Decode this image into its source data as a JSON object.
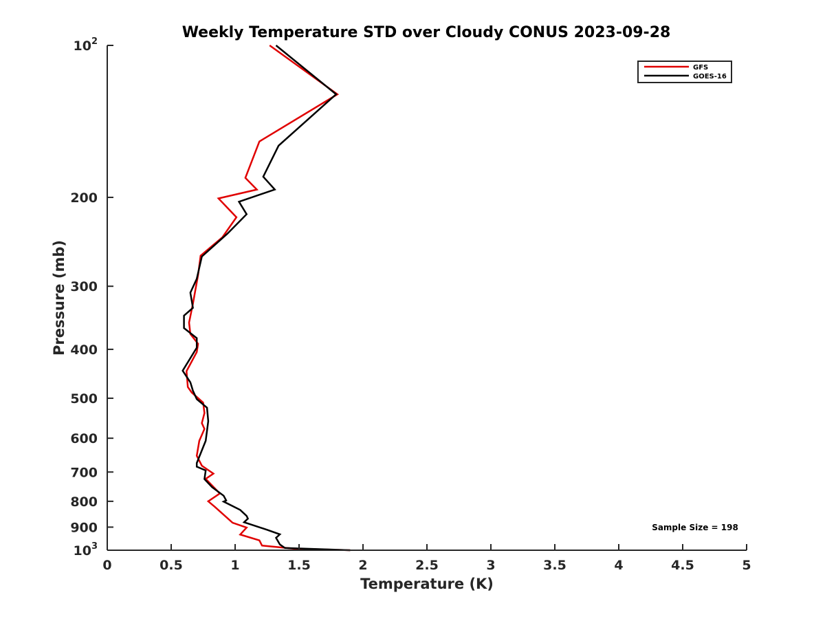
{
  "chart_data": {
    "type": "line",
    "title": "Weekly Temperature STD over Cloudy CONUS 2023-09-28",
    "xlabel": "Temperature (K)",
    "ylabel": "Pressure (mb)",
    "xlim": [
      0,
      5
    ],
    "ylim": [
      100,
      1000
    ],
    "yscale": "log",
    "yreversed": true,
    "grid": false,
    "legend_position": "top-right",
    "xticks": [
      0,
      0.5,
      1,
      1.5,
      2,
      2.5,
      3,
      3.5,
      4,
      4.5,
      5
    ],
    "xtick_labels": [
      "0",
      "0.5",
      "1",
      "1.5",
      "2",
      "2.5",
      "3",
      "3.5",
      "4",
      "4.5",
      "5"
    ],
    "yticks": [
      100,
      200,
      300,
      400,
      500,
      600,
      700,
      800,
      900,
      1000
    ],
    "ytick_labels": [
      {
        "base": "10",
        "exp": "2"
      },
      {
        "base": "200",
        "exp": ""
      },
      {
        "base": "300",
        "exp": ""
      },
      {
        "base": "400",
        "exp": ""
      },
      {
        "base": "500",
        "exp": ""
      },
      {
        "base": "600",
        "exp": ""
      },
      {
        "base": "700",
        "exp": ""
      },
      {
        "base": "800",
        "exp": ""
      },
      {
        "base": "900",
        "exp": ""
      },
      {
        "base": "10",
        "exp": "3"
      }
    ],
    "annotation": "Sample Size = 198",
    "series": [
      {
        "name": "GFS",
        "color": "#e00000",
        "points": [
          [
            1.27,
            100
          ],
          [
            1.8,
            125
          ],
          [
            1.19,
            155
          ],
          [
            1.08,
            183
          ],
          [
            1.17,
            193
          ],
          [
            0.87,
            201
          ],
          [
            1.01,
            219
          ],
          [
            0.9,
            240
          ],
          [
            0.73,
            261
          ],
          [
            0.71,
            285
          ],
          [
            0.67,
            325
          ],
          [
            0.64,
            354
          ],
          [
            0.65,
            373
          ],
          [
            0.71,
            390
          ],
          [
            0.7,
            405
          ],
          [
            0.62,
            442
          ],
          [
            0.63,
            475
          ],
          [
            0.66,
            487
          ],
          [
            0.75,
            510
          ],
          [
            0.76,
            535
          ],
          [
            0.74,
            560
          ],
          [
            0.76,
            575
          ],
          [
            0.72,
            607
          ],
          [
            0.7,
            650
          ],
          [
            0.74,
            680
          ],
          [
            0.83,
            705
          ],
          [
            0.77,
            722
          ],
          [
            0.88,
            772
          ],
          [
            0.79,
            800
          ],
          [
            0.84,
            820
          ],
          [
            0.98,
            882
          ],
          [
            1.09,
            902
          ],
          [
            1.04,
            931
          ],
          [
            1.19,
            956
          ],
          [
            1.21,
            979
          ],
          [
            1.46,
            993
          ],
          [
            1.9,
            1000
          ]
        ]
      },
      {
        "name": "GOES-16",
        "color": "#000000",
        "points": [
          [
            1.32,
            100
          ],
          [
            1.79,
            125
          ],
          [
            1.34,
            158
          ],
          [
            1.22,
            182
          ],
          [
            1.31,
            193
          ],
          [
            1.03,
            204
          ],
          [
            1.09,
            216
          ],
          [
            0.94,
            236
          ],
          [
            0.74,
            262
          ],
          [
            0.7,
            290
          ],
          [
            0.65,
            309
          ],
          [
            0.67,
            331
          ],
          [
            0.6,
            343
          ],
          [
            0.6,
            363
          ],
          [
            0.7,
            380
          ],
          [
            0.7,
            397
          ],
          [
            0.59,
            441
          ],
          [
            0.65,
            465
          ],
          [
            0.67,
            483
          ],
          [
            0.7,
            502
          ],
          [
            0.78,
            522
          ],
          [
            0.79,
            555
          ],
          [
            0.77,
            607
          ],
          [
            0.7,
            672
          ],
          [
            0.7,
            683
          ],
          [
            0.77,
            695
          ],
          [
            0.76,
            723
          ],
          [
            0.82,
            750
          ],
          [
            0.91,
            780
          ],
          [
            0.93,
            797
          ],
          [
            0.91,
            801
          ],
          [
            1.04,
            832
          ],
          [
            1.09,
            855
          ],
          [
            1.1,
            866
          ],
          [
            1.07,
            880
          ],
          [
            1.25,
            911
          ],
          [
            1.35,
            930
          ],
          [
            1.32,
            945
          ],
          [
            1.35,
            974
          ],
          [
            1.39,
            990
          ],
          [
            1.9,
            1000
          ]
        ]
      }
    ]
  }
}
